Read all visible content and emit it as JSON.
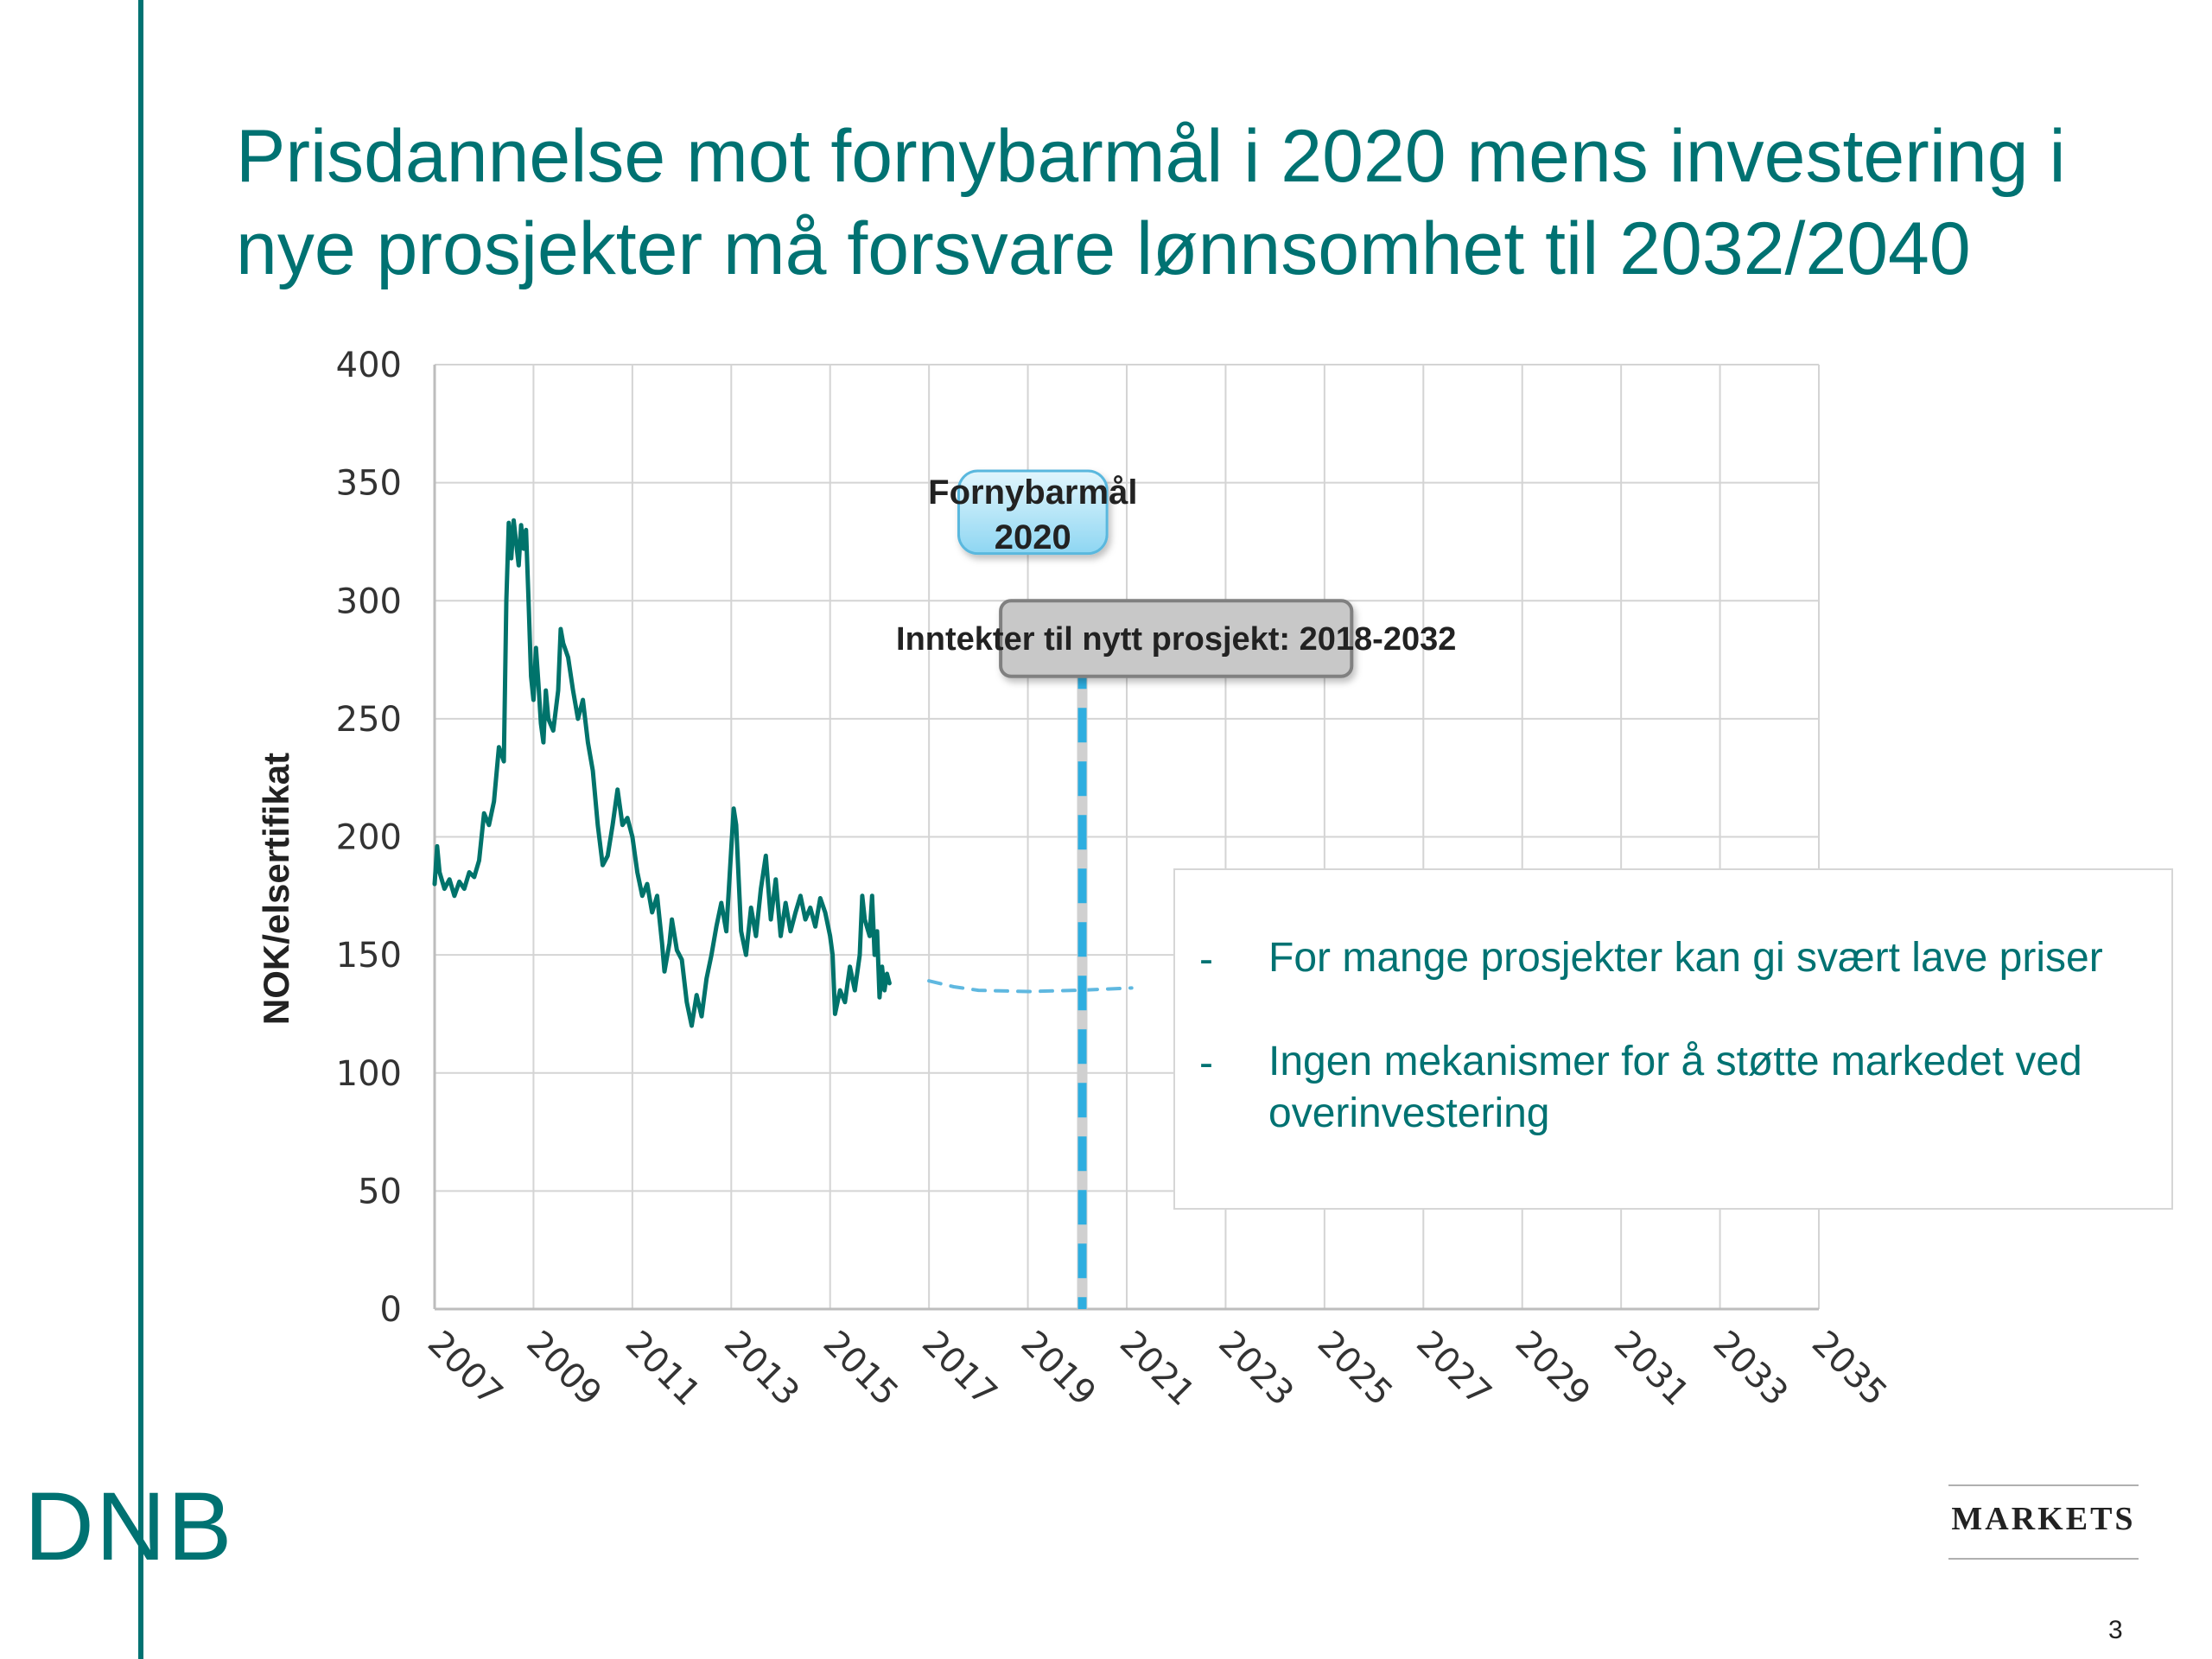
{
  "title": {
    "line1": "Prisdannelse mot fornybarmål i  2020 mens investering i",
    "line2": "nye prosjekter må forsvare lønnsomhet til 2032/2040"
  },
  "chart_data": {
    "type": "line",
    "title": "",
    "xlabel": "",
    "ylabel": "NOK/elsertifikat",
    "xlim": [
      2007,
      2035
    ],
    "ylim": [
      0,
      400
    ],
    "yticks": [
      0,
      50,
      100,
      150,
      200,
      250,
      300,
      350,
      400
    ],
    "xticks": [
      2007,
      2009,
      2011,
      2013,
      2015,
      2017,
      2019,
      2021,
      2023,
      2025,
      2027,
      2029,
      2031,
      2033,
      2035
    ],
    "grid": true,
    "series": [
      {
        "style": "solid",
        "color": "#00736b",
        "points": [
          [
            2007.0,
            180
          ],
          [
            2007.05,
            196
          ],
          [
            2007.1,
            185
          ],
          [
            2007.2,
            178
          ],
          [
            2007.3,
            182
          ],
          [
            2007.4,
            175
          ],
          [
            2007.5,
            181
          ],
          [
            2007.6,
            178
          ],
          [
            2007.7,
            185
          ],
          [
            2007.8,
            183
          ],
          [
            2007.9,
            190
          ],
          [
            2008.0,
            210
          ],
          [
            2008.1,
            205
          ],
          [
            2008.2,
            215
          ],
          [
            2008.3,
            238
          ],
          [
            2008.4,
            232
          ],
          [
            2008.45,
            300
          ],
          [
            2008.5,
            333
          ],
          [
            2008.55,
            318
          ],
          [
            2008.6,
            334
          ],
          [
            2008.7,
            315
          ],
          [
            2008.75,
            332
          ],
          [
            2008.8,
            322
          ],
          [
            2008.85,
            330
          ],
          [
            2008.9,
            300
          ],
          [
            2008.95,
            268
          ],
          [
            2009.0,
            258
          ],
          [
            2009.05,
            280
          ],
          [
            2009.1,
            265
          ],
          [
            2009.15,
            248
          ],
          [
            2009.2,
            240
          ],
          [
            2009.25,
            262
          ],
          [
            2009.3,
            250
          ],
          [
            2009.4,
            245
          ],
          [
            2009.5,
            262
          ],
          [
            2009.55,
            288
          ],
          [
            2009.6,
            282
          ],
          [
            2009.7,
            276
          ],
          [
            2009.8,
            262
          ],
          [
            2009.9,
            250
          ],
          [
            2010.0,
            258
          ],
          [
            2010.1,
            240
          ],
          [
            2010.2,
            228
          ],
          [
            2010.3,
            205
          ],
          [
            2010.4,
            188
          ],
          [
            2010.5,
            192
          ],
          [
            2010.6,
            205
          ],
          [
            2010.7,
            220
          ],
          [
            2010.8,
            205
          ],
          [
            2010.9,
            208
          ],
          [
            2011.0,
            200
          ],
          [
            2011.1,
            185
          ],
          [
            2011.2,
            175
          ],
          [
            2011.3,
            180
          ],
          [
            2011.4,
            168
          ],
          [
            2011.5,
            175
          ],
          [
            2011.6,
            155
          ],
          [
            2011.65,
            143
          ],
          [
            2011.75,
            155
          ],
          [
            2011.8,
            165
          ],
          [
            2011.9,
            152
          ],
          [
            2012.0,
            148
          ],
          [
            2012.1,
            130
          ],
          [
            2012.2,
            120
          ],
          [
            2012.3,
            133
          ],
          [
            2012.4,
            124
          ],
          [
            2012.5,
            140
          ],
          [
            2012.6,
            150
          ],
          [
            2012.7,
            162
          ],
          [
            2012.8,
            172
          ],
          [
            2012.9,
            160
          ],
          [
            2013.0,
            195
          ],
          [
            2013.05,
            212
          ],
          [
            2013.1,
            205
          ],
          [
            2013.15,
            182
          ],
          [
            2013.2,
            160
          ],
          [
            2013.3,
            150
          ],
          [
            2013.4,
            170
          ],
          [
            2013.5,
            158
          ],
          [
            2013.6,
            178
          ],
          [
            2013.7,
            192
          ],
          [
            2013.8,
            165
          ],
          [
            2013.9,
            182
          ],
          [
            2014.0,
            158
          ],
          [
            2014.1,
            172
          ],
          [
            2014.2,
            160
          ],
          [
            2014.3,
            168
          ],
          [
            2014.4,
            175
          ],
          [
            2014.5,
            165
          ],
          [
            2014.6,
            170
          ],
          [
            2014.7,
            162
          ],
          [
            2014.8,
            174
          ],
          [
            2014.9,
            168
          ],
          [
            2015.0,
            158
          ],
          [
            2015.05,
            150
          ],
          [
            2015.1,
            125
          ],
          [
            2015.2,
            135
          ],
          [
            2015.3,
            130
          ],
          [
            2015.4,
            145
          ],
          [
            2015.5,
            135
          ],
          [
            2015.6,
            150
          ],
          [
            2015.65,
            175
          ],
          [
            2015.7,
            165
          ],
          [
            2015.8,
            158
          ],
          [
            2015.85,
            175
          ],
          [
            2015.9,
            150
          ],
          [
            2015.95,
            160
          ],
          [
            2016.0,
            132
          ],
          [
            2016.05,
            145
          ],
          [
            2016.1,
            135
          ],
          [
            2016.15,
            142
          ],
          [
            2016.2,
            138
          ]
        ]
      },
      {
        "style": "dashed",
        "color": "#5fb8e0",
        "points": [
          [
            2017.0,
            139
          ],
          [
            2017.5,
            136.5
          ],
          [
            2018.0,
            135
          ],
          [
            2019.0,
            134.5
          ],
          [
            2020.0,
            135
          ],
          [
            2021.1,
            136
          ]
        ]
      }
    ],
    "annotations": [
      {
        "text_line1": "Fornybarmål",
        "text_line2": "2020",
        "x": 2017.6,
        "y": 355,
        "x2": 2020.6,
        "y2": 320,
        "style": "blue-box"
      },
      {
        "text": "Inntekter til nytt prosjekt: 2018-2032",
        "x": 2018.45,
        "y": 300,
        "x2": 2025.55,
        "y2": 268,
        "style": "gray-box"
      }
    ],
    "vertical_marker": {
      "x": 2020.1,
      "style": "dashed",
      "color": "#2eaee0"
    }
  },
  "callout": {
    "bullet_marker": "-",
    "bullets": [
      "For mange prosjekter kan gi svært lave priser",
      "Ingen mekanismer for å støtte markedet ved overinvestering"
    ]
  },
  "footer": {
    "logo": "DNB",
    "brand": "MARKETS",
    "page_number": "3"
  },
  "colors": {
    "accent": "#007272",
    "line": "#00736b",
    "forecast": "#5fb8e0",
    "marker": "#2eaee0",
    "grid": "#d4d4d4"
  }
}
